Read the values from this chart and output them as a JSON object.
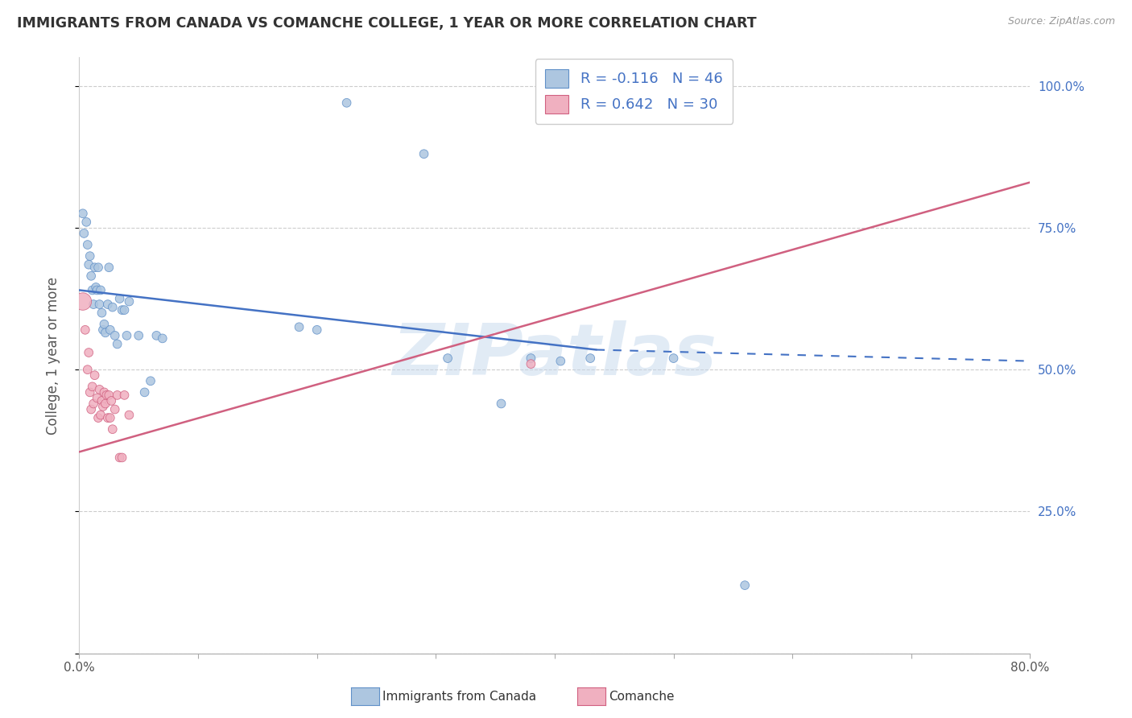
{
  "title": "IMMIGRANTS FROM CANADA VS COMANCHE COLLEGE, 1 YEAR OR MORE CORRELATION CHART",
  "source": "Source: ZipAtlas.com",
  "ylabel": "College, 1 year or more",
  "legend_label1": "Immigrants from Canada",
  "legend_label2": "Comanche",
  "r1": -0.116,
  "n1": 46,
  "r2": 0.642,
  "n2": 30,
  "xmin": 0.0,
  "xmax": 0.8,
  "ymin": 0.0,
  "ymax": 1.05,
  "blue_color": "#adc6e0",
  "pink_color": "#f0b0c0",
  "blue_edge_color": "#6090c8",
  "pink_edge_color": "#d06080",
  "blue_line_color": "#4472c4",
  "pink_line_color": "#d06080",
  "legend_text_color": "#4472c4",
  "right_label_color": "#4472c4",
  "blue_x": [
    0.003,
    0.004,
    0.006,
    0.007,
    0.008,
    0.009,
    0.01,
    0.011,
    0.012,
    0.013,
    0.014,
    0.015,
    0.016,
    0.017,
    0.018,
    0.019,
    0.02,
    0.021,
    0.022,
    0.024,
    0.025,
    0.026,
    0.028,
    0.03,
    0.032,
    0.034,
    0.036,
    0.038,
    0.04,
    0.042,
    0.05,
    0.055,
    0.06,
    0.065,
    0.07,
    0.185,
    0.2,
    0.225,
    0.29,
    0.31,
    0.355,
    0.38,
    0.405,
    0.43,
    0.5,
    0.56
  ],
  "blue_y": [
    0.775,
    0.74,
    0.76,
    0.72,
    0.685,
    0.7,
    0.665,
    0.64,
    0.615,
    0.68,
    0.645,
    0.64,
    0.68,
    0.615,
    0.64,
    0.6,
    0.57,
    0.58,
    0.565,
    0.615,
    0.68,
    0.57,
    0.61,
    0.56,
    0.545,
    0.625,
    0.605,
    0.605,
    0.56,
    0.62,
    0.56,
    0.46,
    0.48,
    0.56,
    0.555,
    0.575,
    0.57,
    0.97,
    0.88,
    0.52,
    0.44,
    0.52,
    0.515,
    0.52,
    0.52,
    0.12
  ],
  "blue_sizes": [
    60,
    60,
    60,
    60,
    60,
    60,
    60,
    60,
    60,
    60,
    60,
    60,
    60,
    60,
    60,
    60,
    60,
    60,
    60,
    60,
    60,
    60,
    60,
    60,
    60,
    60,
    60,
    60,
    60,
    60,
    60,
    60,
    60,
    60,
    60,
    60,
    60,
    60,
    60,
    60,
    60,
    60,
    60,
    60,
    60,
    60
  ],
  "pink_x": [
    0.003,
    0.005,
    0.007,
    0.008,
    0.009,
    0.01,
    0.011,
    0.012,
    0.013,
    0.015,
    0.016,
    0.017,
    0.018,
    0.019,
    0.02,
    0.021,
    0.022,
    0.023,
    0.024,
    0.025,
    0.026,
    0.027,
    0.028,
    0.03,
    0.032,
    0.034,
    0.036,
    0.038,
    0.042,
    0.38
  ],
  "pink_y": [
    0.62,
    0.57,
    0.5,
    0.53,
    0.46,
    0.43,
    0.47,
    0.44,
    0.49,
    0.45,
    0.415,
    0.465,
    0.42,
    0.445,
    0.435,
    0.46,
    0.44,
    0.455,
    0.415,
    0.455,
    0.415,
    0.445,
    0.395,
    0.43,
    0.455,
    0.345,
    0.345,
    0.455,
    0.42,
    0.51
  ],
  "pink_sizes": [
    240,
    60,
    60,
    60,
    60,
    60,
    60,
    60,
    60,
    60,
    60,
    60,
    60,
    60,
    60,
    60,
    60,
    60,
    60,
    60,
    60,
    60,
    60,
    60,
    60,
    60,
    60,
    60,
    60,
    60
  ],
  "blue_trend_x0": 0.0,
  "blue_trend_x1": 0.435,
  "blue_trend_x2": 0.8,
  "blue_trend_y0": 0.64,
  "blue_trend_y1": 0.535,
  "blue_trend_y2": 0.515,
  "pink_trend_x0": 0.0,
  "pink_trend_x1": 0.8,
  "pink_trend_y0": 0.355,
  "pink_trend_y1": 0.83,
  "ytick_positions": [
    0.0,
    0.25,
    0.5,
    0.75,
    1.0
  ],
  "ytick_right_labels": [
    "",
    "25.0%",
    "50.0%",
    "75.0%",
    "100.0%"
  ],
  "xtick_positions": [
    0.0,
    0.1,
    0.2,
    0.3,
    0.4,
    0.5,
    0.6,
    0.7,
    0.8
  ],
  "xtick_labels": [
    "0.0%",
    "",
    "",
    "",
    "",
    "",
    "",
    "",
    "80.0%"
  ],
  "watermark": "ZIPatlas",
  "background": "#ffffff",
  "grid_color": "#cccccc"
}
